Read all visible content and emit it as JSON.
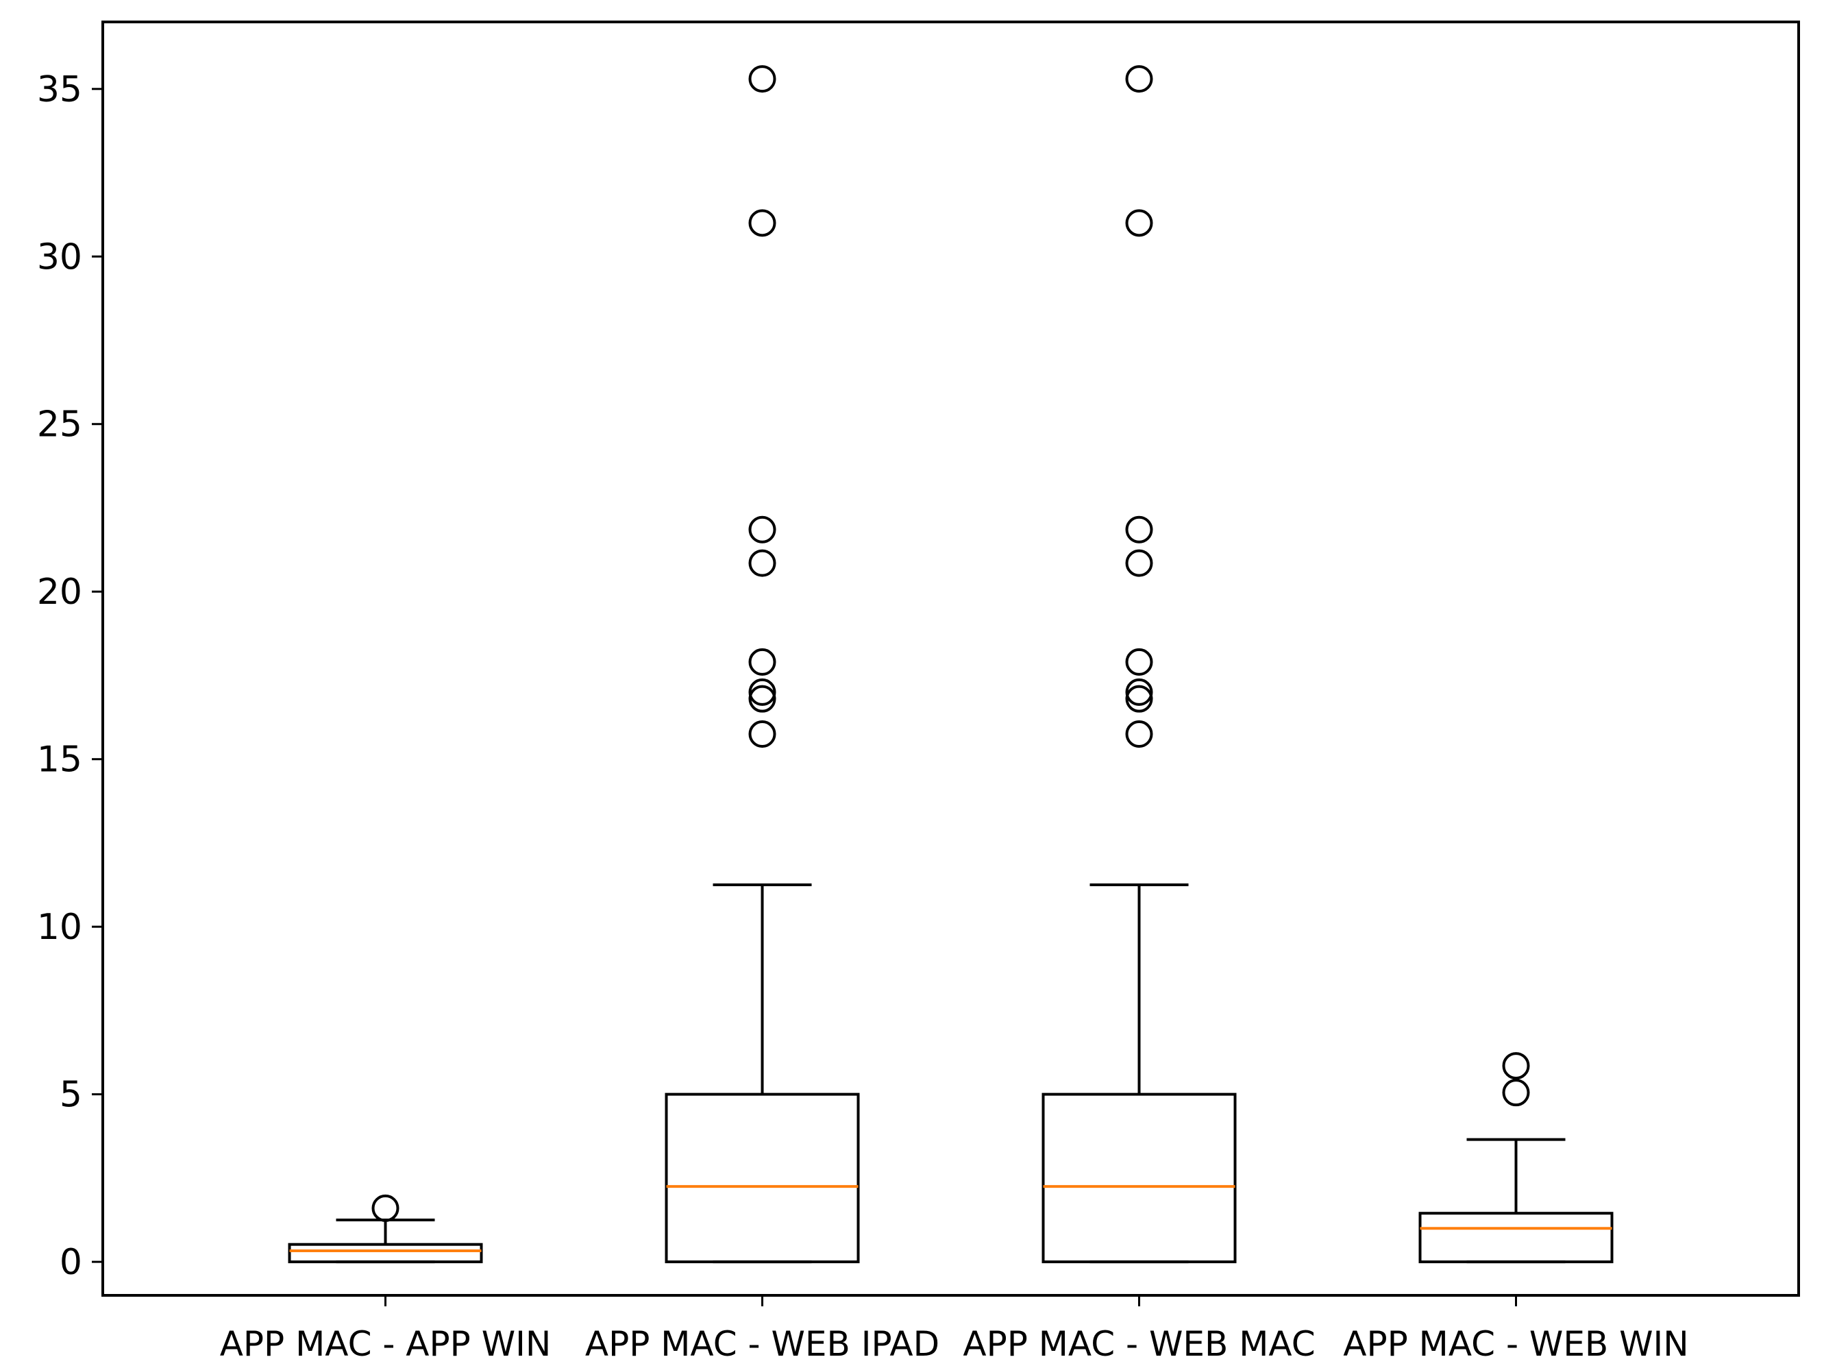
{
  "chart_data": {
    "type": "boxplot",
    "title": "",
    "xlabel": "",
    "ylabel": "",
    "ylim": [
      -1.0,
      37.0
    ],
    "yticks": [
      0,
      5,
      10,
      15,
      20,
      25,
      30,
      35
    ],
    "ytick_labels": [
      "0",
      "5",
      "10",
      "15",
      "20",
      "25",
      "30",
      "35"
    ],
    "grid": false,
    "colors": {
      "box": "#000000",
      "median": "#ff7f0e",
      "flier": "#000000"
    },
    "categories": [
      "APP MAC - APP WIN",
      "APP MAC - WEB IPAD",
      "APP MAC - WEB MAC",
      "APP MAC - WEB WIN"
    ],
    "boxes": [
      {
        "label": "APP MAC - APP WIN",
        "whisker_low": 0.0,
        "q1": 0.0,
        "median": 0.33,
        "q3": 0.52,
        "whisker_high": 1.25,
        "fliers": [
          1.6
        ]
      },
      {
        "label": "APP MAC - WEB IPAD",
        "whisker_low": 0.0,
        "q1": 0.0,
        "median": 2.25,
        "q3": 5.0,
        "whisker_high": 11.25,
        "fliers": [
          15.75,
          16.8,
          17.0,
          17.9,
          20.85,
          21.85,
          31.0,
          35.3
        ]
      },
      {
        "label": "APP MAC - WEB MAC",
        "whisker_low": 0.0,
        "q1": 0.0,
        "median": 2.25,
        "q3": 5.0,
        "whisker_high": 11.25,
        "fliers": [
          15.75,
          16.8,
          17.0,
          17.9,
          20.85,
          21.85,
          31.0,
          35.3
        ]
      },
      {
        "label": "APP MAC - WEB WIN",
        "whisker_low": 0.0,
        "q1": 0.0,
        "median": 1.0,
        "q3": 1.45,
        "whisker_high": 3.65,
        "fliers": [
          5.05,
          5.85
        ]
      }
    ]
  }
}
